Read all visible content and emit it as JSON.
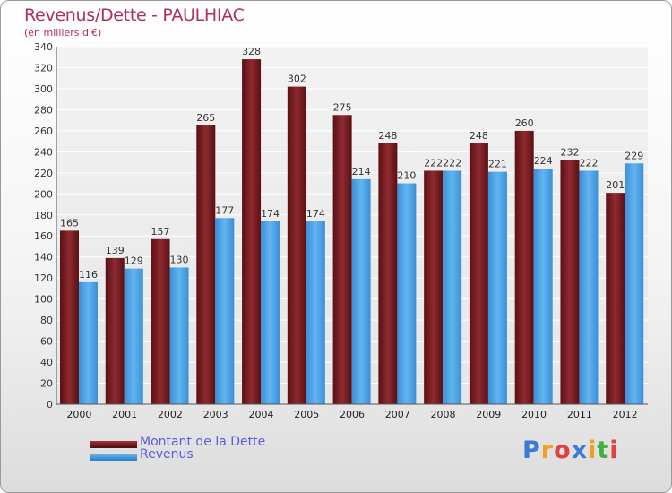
{
  "header": {
    "title": "Revenus/Dette - PAULHIAC",
    "subtitle": "(en milliers d'€)"
  },
  "colors": {
    "debt": "#7c1f24",
    "revenue": "#3f9be4",
    "title": "#b0305a",
    "legend_text": "#5a5ae0"
  },
  "chart_data": {
    "type": "bar",
    "title": "Revenus/Dette - PAULHIAC",
    "ylabel": "(en milliers d'€)",
    "xlabel": "",
    "ylim": [
      0,
      340
    ],
    "yticks": [
      0,
      20,
      40,
      60,
      80,
      100,
      120,
      140,
      160,
      180,
      200,
      220,
      240,
      260,
      280,
      300,
      320,
      340
    ],
    "grid": true,
    "legend_position": "bottom-left",
    "categories": [
      "2000",
      "2001",
      "2002",
      "2003",
      "2004",
      "2005",
      "2006",
      "2007",
      "2008",
      "2009",
      "2010",
      "2011",
      "2012"
    ],
    "series": [
      {
        "name": "Montant de la Dette",
        "values": [
          165,
          139,
          157,
          265,
          328,
          302,
          275,
          248,
          222,
          248,
          260,
          232,
          201
        ]
      },
      {
        "name": "Revenus",
        "values": [
          116,
          129,
          130,
          177,
          174,
          174,
          214,
          210,
          222,
          221,
          224,
          222,
          229
        ]
      }
    ]
  },
  "logo": {
    "letters": [
      {
        "ch": "P",
        "color": "#3a7bd5"
      },
      {
        "ch": "r",
        "color": "#f0a020"
      },
      {
        "ch": "o",
        "color": "#e04040"
      },
      {
        "ch": "x",
        "color": "#3a7bd5"
      },
      {
        "ch": "i",
        "color": "#f0a020"
      },
      {
        "ch": "t",
        "color": "#40b040"
      },
      {
        "ch": "i",
        "color": "#e04040"
      }
    ]
  }
}
